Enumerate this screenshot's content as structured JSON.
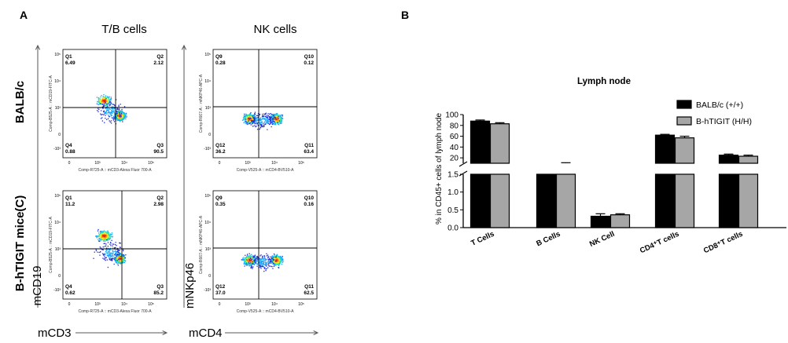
{
  "panel_a": {
    "letter": "A",
    "col_titles": [
      "T/B cells",
      "NK cells"
    ],
    "row_labels": [
      "BALB/c",
      "B-hTIGIT mice(C)"
    ],
    "y_markers": [
      "mCD19",
      "mNKp46"
    ],
    "x_markers": [
      "mCD3",
      "mCD4"
    ],
    "plots": [
      {
        "y_axis_text": "Comp-B525-A :: mCD19-FITC-A",
        "x_axis_text": "Comp-R725-A :: mCD3-Alexa Fluor 700-A",
        "quadrants": [
          {
            "name": "Q1",
            "value": "6.49"
          },
          {
            "name": "Q2",
            "value": "2.12"
          },
          {
            "name": "Q4",
            "value": "0.88"
          },
          {
            "name": "Q3",
            "value": "90.5"
          }
        ]
      },
      {
        "y_axis_text": "Comp-R667-A :: mNKP46-APC-A",
        "x_axis_text": "Comp-V525-A :: mCD4-BV510-A",
        "quadrants": [
          {
            "name": "Q9",
            "value": "0.28"
          },
          {
            "name": "Q10",
            "value": "0.12"
          },
          {
            "name": "Q12",
            "value": "36.2"
          },
          {
            "name": "Q11",
            "value": "63.4"
          }
        ]
      },
      {
        "y_axis_text": "Comp-B525-A :: mCD19-FITC-A",
        "x_axis_text": "Comp-R725-A :: mCD3-Alexa Fluor 700-A",
        "quadrants": [
          {
            "name": "Q1",
            "value": "11.2"
          },
          {
            "name": "Q2",
            "value": "2.98"
          },
          {
            "name": "Q4",
            "value": "0.62"
          },
          {
            "name": "Q3",
            "value": "85.2"
          }
        ]
      },
      {
        "y_axis_text": "Comp-R667-A :: mNKP46-APC-A",
        "x_axis_text": "Comp-V525-A :: mCD4-BV510-A",
        "quadrants": [
          {
            "name": "Q9",
            "value": "0.35"
          },
          {
            "name": "Q10",
            "value": "0.16"
          },
          {
            "name": "Q12",
            "value": "37.0"
          },
          {
            "name": "Q11",
            "value": "62.5"
          }
        ]
      }
    ],
    "y_ticks": [
      "10⁵",
      "10⁴",
      "10³",
      "0",
      "-10³"
    ],
    "x_ticks": [
      "0",
      "10³",
      "10⁴",
      "10⁵"
    ],
    "density_colors": [
      "#1f2bd6",
      "#14a7ff",
      "#27e0b0",
      "#f0f020",
      "#ff8a10",
      "#e82010"
    ]
  },
  "chart_data": {
    "type": "bar",
    "panel_letter": "B",
    "title": "Lymph node",
    "ylabel": "% in CD45+ cells of lymph node",
    "categories": [
      "T Cells",
      "B Cells",
      "NK Cell",
      "CD4⁺T cells",
      "CD8⁺T cells"
    ],
    "series": [
      {
        "name": "BALB/c (+/+)",
        "color": "#000000",
        "values": [
          88,
          1.5,
          0.32,
          62,
          25
        ],
        "errors": [
          2,
          0,
          0.07,
          1.5,
          2
        ]
      },
      {
        "name": "B-hTIGIT (H/H)",
        "color": "#a6a6a6",
        "values": [
          83,
          9,
          0.36,
          57,
          23
        ],
        "errors": [
          2,
          2,
          0.03,
          3,
          2
        ]
      }
    ],
    "y_axis": {
      "broken": true,
      "lower_range": [
        0,
        1.5
      ],
      "upper_range": [
        10,
        100
      ],
      "lower_ticks": [
        "0.0",
        "0.5",
        "1.0",
        "1.5"
      ],
      "upper_ticks": [
        "20",
        "40",
        "60",
        "80",
        "100"
      ]
    },
    "legend_position": "top-right",
    "grid": false
  }
}
